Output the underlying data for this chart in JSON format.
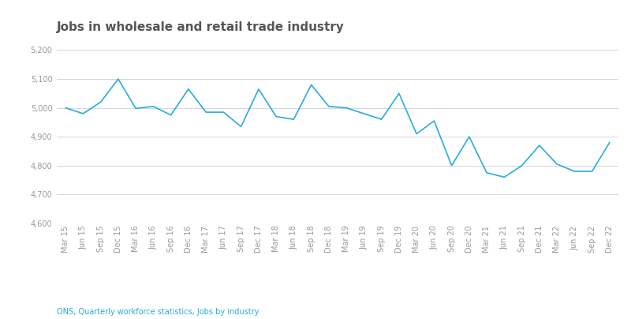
{
  "title": "Jobs in wholesale and retail trade industry",
  "source_text": "ONS, Quarterly workforce statistics, Jobs by industry",
  "line_color": "#29ABE2",
  "background_color": "#ffffff",
  "grid_color": "#d0d0d0",
  "title_color": "#555555",
  "source_color": "#29ABE2",
  "ylim": [
    4600,
    5230
  ],
  "yticks": [
    4600,
    4700,
    4800,
    4900,
    5000,
    5100,
    5200
  ],
  "labels": [
    "Mar 15",
    "Jun 15",
    "Sep 15",
    "Dec 15",
    "Mar 16",
    "Jun 16",
    "Sep 16",
    "Dec 16",
    "Mar 17",
    "Jun 17",
    "Sep 17",
    "Dec 17",
    "Mar 18",
    "Jun 18",
    "Sep 18",
    "Dec 18",
    "Mar 19",
    "Jun 19",
    "Sep 19",
    "Dec 19",
    "Mar 20",
    "Jun 20",
    "Sep 20",
    "Dec 20",
    "Mar 21",
    "Jun 21",
    "Sep 21",
    "Dec 21",
    "Mar 22",
    "Jun 22",
    "Sep 22",
    "Dec 22"
  ],
  "values": [
    5000,
    4980,
    5020,
    5100,
    4998,
    5005,
    4975,
    5065,
    4985,
    4985,
    4935,
    5065,
    4970,
    4960,
    5080,
    5005,
    5000,
    4980,
    4960,
    5050,
    4910,
    4955,
    4800,
    4900,
    4775,
    4760,
    4800,
    4870,
    4805,
    4780,
    4780,
    4880
  ],
  "title_fontsize": 11,
  "tick_fontsize": 7,
  "source_fontsize": 7,
  "line_width": 1.2
}
